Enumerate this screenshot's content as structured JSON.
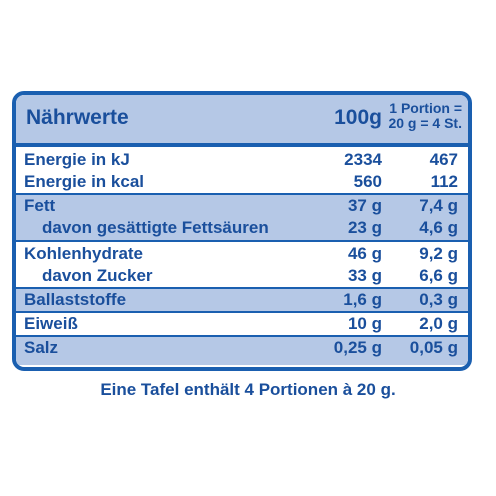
{
  "header": {
    "title": "Nährwerte",
    "col_100g": "100g",
    "col_portion_line1": "1 Portion =",
    "col_portion_line2": "20 g = 4 St."
  },
  "rows": [
    {
      "label": "Energie in kJ",
      "per100": "2334",
      "perPortion": "467"
    },
    {
      "label": "Energie in kcal",
      "per100": "560",
      "perPortion": "112"
    },
    {
      "label": "Fett",
      "per100": "37 g",
      "perPortion": "7,4 g"
    },
    {
      "label": "davon gesättigte Fettsäuren",
      "per100": "23 g",
      "perPortion": "4,6 g"
    },
    {
      "label": "Kohlenhydrate",
      "per100": "46 g",
      "perPortion": "9,2 g"
    },
    {
      "label": "davon Zucker",
      "per100": "33 g",
      "perPortion": "6,6 g"
    },
    {
      "label": "Ballaststoffe",
      "per100": "1,6 g",
      "perPortion": "0,3 g"
    },
    {
      "label": "Eiweiß",
      "per100": "10 g",
      "perPortion": "2,0 g"
    },
    {
      "label": "Salz",
      "per100": "0,25 g",
      "perPortion": "0,05 g"
    }
  ],
  "footer": "Eine Tafel enthält 4 Portionen à 20 g.",
  "colors": {
    "text": "#1a4f9c",
    "border": "#1a5fb0",
    "shade": "#b5c8e6"
  }
}
